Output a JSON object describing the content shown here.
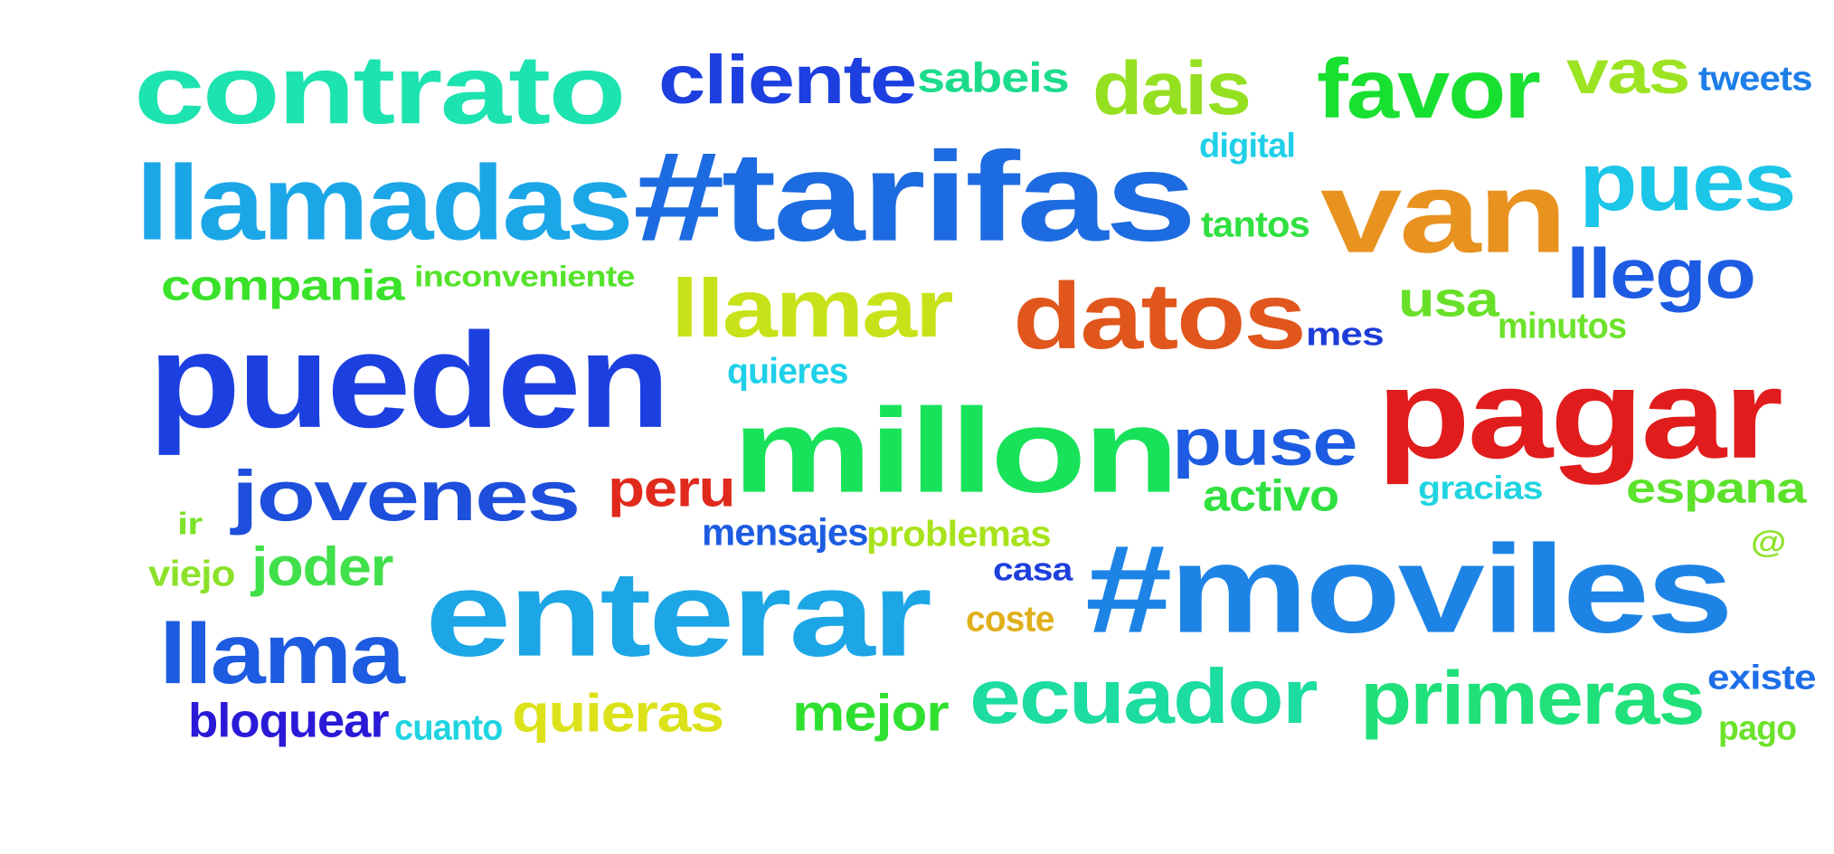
{
  "cloud": {
    "words": [
      {
        "id": "contrato",
        "text": "contrato",
        "color": "#1de3b0"
      },
      {
        "id": "cliente",
        "text": "cliente",
        "color": "#1d3fe0"
      },
      {
        "id": "sabeis",
        "text": "sabeis",
        "color": "#1cdc8c"
      },
      {
        "id": "dais",
        "text": "dais",
        "color": "#95e020"
      },
      {
        "id": "favor",
        "text": "favor",
        "color": "#18e030"
      },
      {
        "id": "vas",
        "text": "vas",
        "color": "#9ce422"
      },
      {
        "id": "tweets",
        "text": "tweets",
        "color": "#1d7ee8"
      },
      {
        "id": "digital",
        "text": "digital",
        "color": "#1fd0e8"
      },
      {
        "id": "llamadas",
        "text": "llamadas",
        "color": "#1ba6e8"
      },
      {
        "id": "tarifas",
        "text": "#tarifas",
        "color": "#1d6be0"
      },
      {
        "id": "van",
        "text": "van",
        "color": "#e89220"
      },
      {
        "id": "pues",
        "text": "pues",
        "color": "#1cc6e8"
      },
      {
        "id": "tantos",
        "text": "tantos",
        "color": "#30e040"
      },
      {
        "id": "llego",
        "text": "llego",
        "color": "#1d5ce2"
      },
      {
        "id": "compania",
        "text": "compania",
        "color": "#3ae22a"
      },
      {
        "id": "inconveniente",
        "text": "inconveniente",
        "color": "#55e22a"
      },
      {
        "id": "llamar",
        "text": "llamar",
        "color": "#c8e21a"
      },
      {
        "id": "datos",
        "text": "datos",
        "color": "#e0561c"
      },
      {
        "id": "usa",
        "text": "usa",
        "color": "#68e028"
      },
      {
        "id": "minutos",
        "text": "minutos",
        "color": "#6ce22a"
      },
      {
        "id": "mes",
        "text": "mes",
        "color": "#1d3cd8"
      },
      {
        "id": "pueden",
        "text": "pueden",
        "color": "#1c40e0"
      },
      {
        "id": "quieres",
        "text": "quieres",
        "color": "#1fd0e8"
      },
      {
        "id": "pagar",
        "text": "pagar",
        "color": "#e01c1c"
      },
      {
        "id": "millon",
        "text": "millon",
        "color": "#18e25a"
      },
      {
        "id": "puse",
        "text": "puse",
        "color": "#1d5ce2"
      },
      {
        "id": "jovenes",
        "text": "jovenes",
        "color": "#1d4fdc"
      },
      {
        "id": "peru",
        "text": "peru",
        "color": "#e02a1c"
      },
      {
        "id": "activo",
        "text": "activo",
        "color": "#30e040"
      },
      {
        "id": "gracias",
        "text": "gracias",
        "color": "#1fd4e0"
      },
      {
        "id": "espana",
        "text": "espana",
        "color": "#5ce22a"
      },
      {
        "id": "ir",
        "text": "ir",
        "color": "#7ce22a"
      },
      {
        "id": "mensajes",
        "text": "mensajes",
        "color": "#1d5ce2"
      },
      {
        "id": "problemas",
        "text": "problemas",
        "color": "#a8e21a"
      },
      {
        "id": "at",
        "text": "@",
        "color": "#8ce22a"
      },
      {
        "id": "viejo",
        "text": "viejo",
        "color": "#8ce22a"
      },
      {
        "id": "joder",
        "text": "joder",
        "color": "#40e04a"
      },
      {
        "id": "casa",
        "text": "casa",
        "color": "#1d3fdc"
      },
      {
        "id": "moviles",
        "text": "#moviles",
        "color": "#1d84e6"
      },
      {
        "id": "enterar",
        "text": "enterar",
        "color": "#1ca6e6"
      },
      {
        "id": "coste",
        "text": "coste",
        "color": "#e0b01c"
      },
      {
        "id": "llama",
        "text": "llama",
        "color": "#1d5ce0"
      },
      {
        "id": "ecuador",
        "text": "ecuador",
        "color": "#1cdca0"
      },
      {
        "id": "primeras",
        "text": "primeras",
        "color": "#20e07a"
      },
      {
        "id": "existe",
        "text": "existe",
        "color": "#1d6ee8"
      },
      {
        "id": "mejor",
        "text": "mejor",
        "color": "#30e030"
      },
      {
        "id": "bloquear",
        "text": "bloquear",
        "color": "#2a1ad8"
      },
      {
        "id": "cuanto",
        "text": "cuanto",
        "color": "#1fd4e0"
      },
      {
        "id": "quieras",
        "text": "quieras",
        "color": "#dce21a"
      },
      {
        "id": "pago",
        "text": "pago",
        "color": "#6ce22a"
      }
    ]
  }
}
